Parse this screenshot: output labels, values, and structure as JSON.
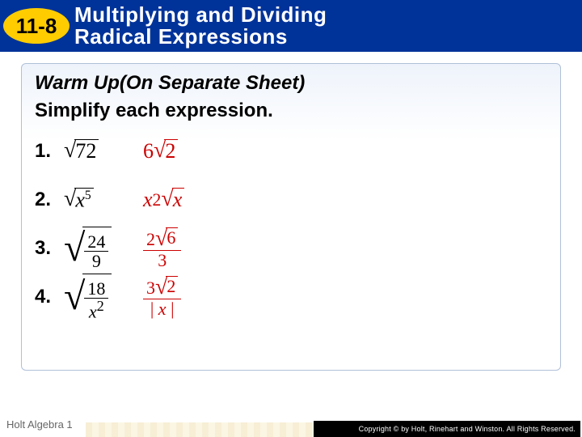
{
  "header": {
    "lesson_number": "11-8",
    "title_line1": "Multiplying and Dividing",
    "title_line2": "Radical Expressions"
  },
  "card": {
    "warmup_title": "Warm Up(On Separate Sheet)",
    "instruction": "Simplify each expression.",
    "problems": {
      "p1": {
        "label": "1.",
        "radicand": "72",
        "ans_coef": "6",
        "ans_rad": "2"
      },
      "p2": {
        "label": "2.",
        "base": "x",
        "exp": "5",
        "ans_coef_base": "x",
        "ans_coef_exp": "2",
        "ans_rad": "x"
      },
      "p3": {
        "label": "3.",
        "num": "24",
        "den": "9",
        "ans_num_coef": "2",
        "ans_num_rad": "6",
        "ans_den": "3"
      },
      "p4": {
        "label": "4.",
        "num": "18",
        "den_base": "x",
        "den_exp": "2",
        "ans_num_coef": "3",
        "ans_num_rad": "2",
        "ans_den_open": "| ",
        "ans_den_var": "x",
        "ans_den_close": " |"
      }
    }
  },
  "footer": {
    "left": "Holt Algebra 1",
    "right": "Copyright © by Holt, Rinehart and Winston. All Rights Reserved."
  },
  "colors": {
    "header_bg": "#003399",
    "badge_bg": "#ffcc00",
    "answer": "#cc0000",
    "card_border": "#b0c0d8"
  }
}
